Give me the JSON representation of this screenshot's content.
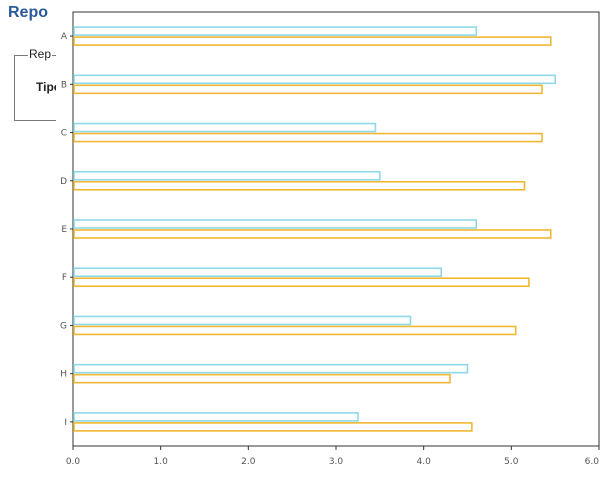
{
  "background_window": {
    "title": "Repo",
    "group_label": "Rep",
    "field_label": "Tipo"
  },
  "colors": {
    "series_a": "#8fd8ea",
    "series_b": "#f2b733",
    "axis": "#333333",
    "grid_text": "#555555"
  },
  "chart_data": {
    "type": "bar",
    "orientation": "horizontal",
    "categories": [
      "A",
      "B",
      "C",
      "D",
      "E",
      "F",
      "G",
      "H",
      "I"
    ],
    "series": [
      {
        "values": [
          4.6,
          5.5,
          3.45,
          3.5,
          4.6,
          4.2,
          3.85,
          4.5,
          3.25
        ]
      },
      {
        "values": [
          5.45,
          5.35,
          5.35,
          5.15,
          5.45,
          5.2,
          5.05,
          4.3,
          4.55
        ]
      }
    ],
    "xlim": [
      0,
      6
    ],
    "x_ticks": [
      "0.0",
      "1.0",
      "2.0",
      "3.0",
      "4.0",
      "5.0",
      "6.0"
    ],
    "grid": false,
    "legend": "none"
  }
}
